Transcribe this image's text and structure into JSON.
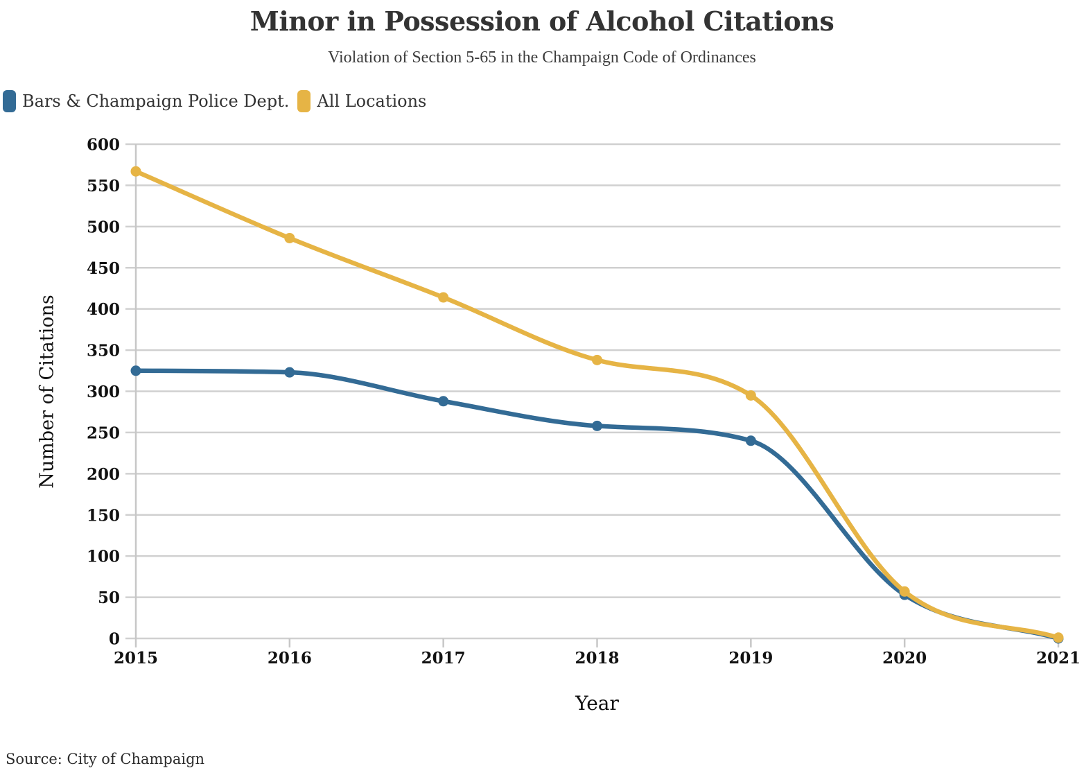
{
  "header": {
    "title": "Minor in Possession of Alcohol Citations",
    "subtitle": "Violation of Section 5-65 in the Champaign Code of Ordinances"
  },
  "legend": {
    "items": [
      {
        "label": "Bars & Champaign Police Dept.",
        "color": "#336b95"
      },
      {
        "label": "All Locations",
        "color": "#e6b445"
      }
    ]
  },
  "chart_data": {
    "type": "line",
    "title": "Minor in Possession of Alcohol Citations",
    "subtitle": "Violation of Section 5-65 in the Champaign Code of Ordinances",
    "x": [
      2015,
      2016,
      2017,
      2018,
      2019,
      2020,
      2021
    ],
    "xticks": [
      "2015",
      "2016",
      "2017",
      "2018",
      "2019",
      "2020",
      "2021"
    ],
    "series": [
      {
        "name": "Bars & Champaign Police Dept.",
        "color": "#336b95",
        "values": [
          325,
          323,
          288,
          258,
          240,
          53,
          0
        ]
      },
      {
        "name": "All Locations",
        "color": "#e6b445",
        "values": [
          567,
          486,
          414,
          338,
          295,
          57,
          1
        ]
      }
    ],
    "xlabel": "Year",
    "ylabel": "Number of Citations",
    "ylim": [
      0,
      600
    ],
    "yticks": [
      0,
      50,
      100,
      150,
      200,
      250,
      300,
      350,
      400,
      450,
      500,
      550,
      600
    ],
    "grid": true,
    "legend_position": "top-left",
    "curve": "monotone"
  },
  "footer": {
    "source": "Source: City of Champaign"
  }
}
